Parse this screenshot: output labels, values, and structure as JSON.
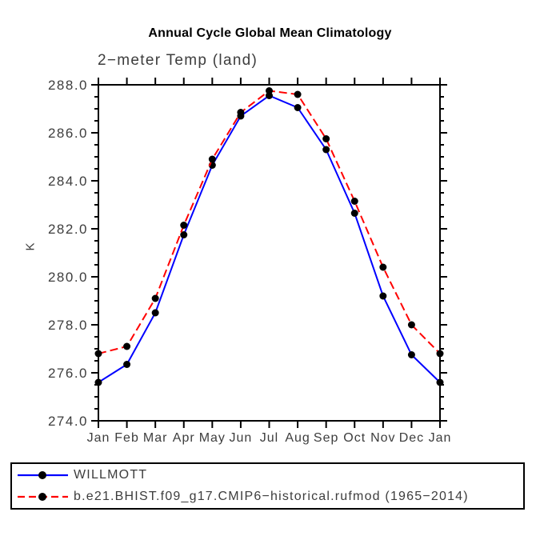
{
  "header": {
    "title": "Annual Cycle Global Mean Climatology",
    "subtitle": "2−meter Temp (land)"
  },
  "colors": {
    "series1_line": "#0000ff",
    "series2_line": "#ff0000",
    "marker": "#000000",
    "frame": "#000000",
    "label_text": "#3d3d3d"
  },
  "chart_data": {
    "type": "line",
    "title": "Annual Cycle Global Mean Climatology",
    "subtitle": "2−meter Temp (land)",
    "xlabel": "",
    "ylabel": "K",
    "categories": [
      "Jan",
      "Feb",
      "Mar",
      "Apr",
      "May",
      "Jun",
      "Jul",
      "Aug",
      "Sep",
      "Oct",
      "Nov",
      "Dec",
      "Jan"
    ],
    "ylim": [
      274.0,
      288.0
    ],
    "ytick_major_step": 2.0,
    "ytick_minor_step": 0.5,
    "ytick_labels": [
      "274.0",
      "276.0",
      "278.0",
      "280.0",
      "282.0",
      "284.0",
      "286.0",
      "288.0"
    ],
    "grid": false,
    "legend_position": "bottom-box",
    "series": [
      {
        "name": "WILLMOTT",
        "color": "#0000ff",
        "line_style": "solid",
        "marker": "circle",
        "marker_color": "#000000",
        "values": [
          275.6,
          276.35,
          278.5,
          281.75,
          284.65,
          286.7,
          287.55,
          287.05,
          285.3,
          282.65,
          279.2,
          276.75,
          275.6
        ]
      },
      {
        "name": "b.e21.BHIST.f09_g17.CMIP6−historical.rufmod (1965−2014)",
        "color": "#ff0000",
        "line_style": "dashed",
        "marker": "circle",
        "marker_color": "#000000",
        "values": [
          276.8,
          277.1,
          279.1,
          282.15,
          284.9,
          286.85,
          287.75,
          287.6,
          285.75,
          283.15,
          280.4,
          278.0,
          276.8
        ]
      }
    ]
  }
}
